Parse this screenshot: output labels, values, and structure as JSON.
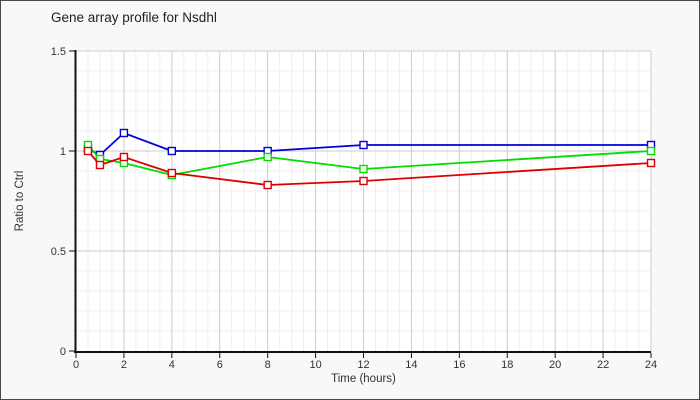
{
  "chart_data": {
    "type": "line",
    "title": "Gene array profile for Nsdhl",
    "xlabel": "Time (hours)",
    "ylabel": "Ratio to Ctrl",
    "x": [
      0.5,
      1,
      2,
      4,
      8,
      12,
      24
    ],
    "series": [
      {
        "name": "series-blue",
        "color": "#0000dd",
        "values": [
          1.01,
          0.98,
          1.09,
          1.0,
          1.0,
          1.03,
          1.03
        ]
      },
      {
        "name": "series-green",
        "color": "#00dd00",
        "values": [
          1.03,
          0.96,
          0.94,
          0.88,
          0.97,
          0.91,
          1.0
        ]
      },
      {
        "name": "series-red",
        "color": "#dd0000",
        "values": [
          1.0,
          0.93,
          0.97,
          0.89,
          0.83,
          0.85,
          0.94
        ]
      }
    ],
    "xlim": [
      0,
      24
    ],
    "ylim": [
      0,
      1.5
    ],
    "xticks": [
      0,
      2,
      4,
      6,
      8,
      10,
      12,
      14,
      16,
      18,
      20,
      22,
      24
    ],
    "xtick_labels": [
      "0",
      "2",
      "4",
      "6",
      "8",
      "10",
      "12",
      "14",
      "16",
      "18",
      "20",
      "22",
      "24"
    ],
    "yticks": [
      0,
      0.5,
      1,
      1.5
    ],
    "ytick_labels": [
      "0",
      "0.5",
      "1",
      "1.5"
    ],
    "grid": {
      "major_x_step": 2,
      "minor_x_step": 0.5,
      "major_y_step": 0.5,
      "minor_y_step": 0.1,
      "grid_on": true
    },
    "legend": "none",
    "marker": "open-square",
    "colors": {
      "background": "#f8f8f8",
      "plot_background": "#ffffff",
      "grid_major": "#cccccc",
      "grid_minor": "#efefef",
      "axis": "#111111",
      "tick_text": "#333333",
      "title_text": "#222222",
      "frame_border": "#4a4a4a"
    }
  }
}
